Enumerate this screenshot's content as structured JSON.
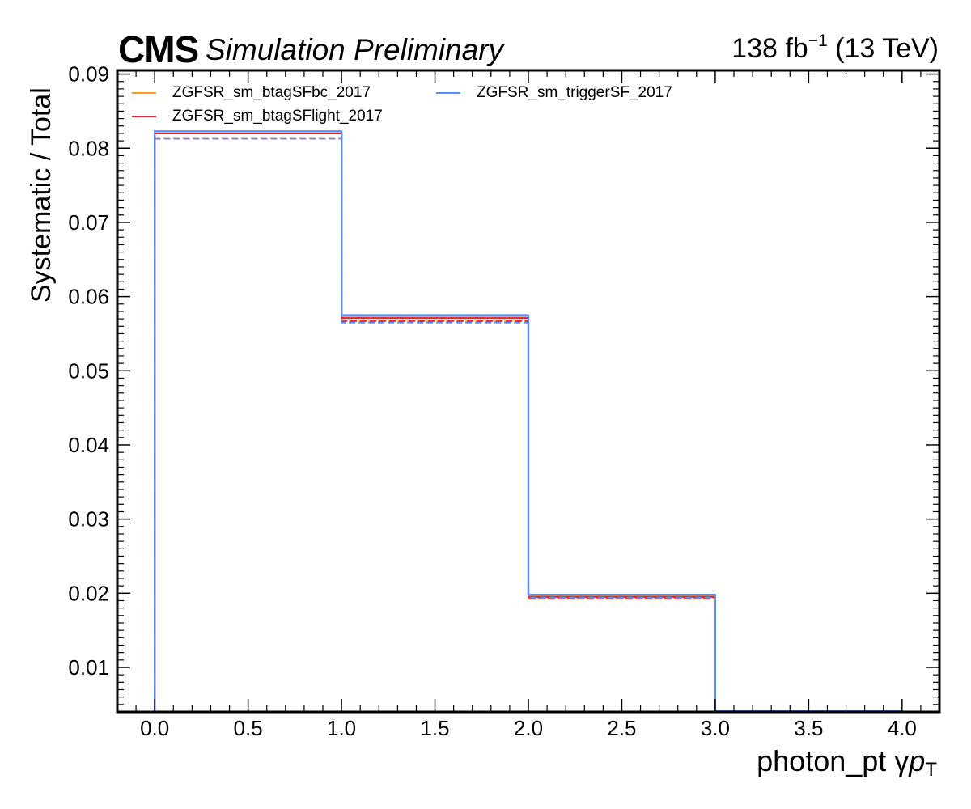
{
  "header": {
    "experiment": "CMS",
    "status": "Simulation Preliminary",
    "lumi_value": "138 fb",
    "lumi_exp": "−1",
    "lumi_energy": " (13 TeV)"
  },
  "axes": {
    "ylabel": "Systematic / Total",
    "xlabel_text": "photon_pt   γ",
    "xlabel_var": "p",
    "xlabel_sub": "T"
  },
  "legend": [
    {
      "label": "ZGFSR_sm_btagSFbc_2017",
      "color": "#f89c20"
    },
    {
      "label": "ZGFSR_sm_btagSFlight_2017",
      "color": "#e42536"
    },
    {
      "label": "ZGFSR_sm_triggerSF_2017",
      "color": "#5790fc"
    }
  ],
  "chart_data": {
    "type": "line",
    "style": "step-histogram",
    "xlim": [
      -0.2,
      4.2
    ],
    "ylim": [
      0.004,
      0.0905
    ],
    "bin_edges": [
      0,
      1,
      2,
      3,
      4
    ],
    "xticks": [
      "0.0",
      "0.5",
      "1.0",
      "1.5",
      "2.0",
      "2.5",
      "3.0",
      "3.5",
      "4.0"
    ],
    "yticks": [
      "0.01",
      "0.02",
      "0.03",
      "0.04",
      "0.05",
      "0.06",
      "0.07",
      "0.08",
      "0.09"
    ],
    "series": [
      {
        "name": "ZGFSR_sm_btagSFbc_2017",
        "color": "#f89c20",
        "up": [
          0.082,
          0.0572,
          0.0196,
          0.0041
        ],
        "down": [
          0.0814,
          0.0567,
          0.0193,
          0.0041
        ]
      },
      {
        "name": "ZGFSR_sm_btagSFlight_2017",
        "color": "#e42536",
        "up": [
          0.082,
          0.0571,
          0.0195,
          0.0041
        ],
        "down": [
          0.0813,
          0.0567,
          0.0193,
          0.0041
        ]
      },
      {
        "name": "ZGFSR_sm_triggerSF_2017",
        "color": "#5790fc",
        "up": [
          0.0823,
          0.0575,
          0.0198,
          0.0041
        ],
        "down": [
          0.0813,
          0.0565,
          0.0194,
          0.0041
        ]
      }
    ],
    "grid": false,
    "legend_position": "top-left, 2 columns"
  }
}
